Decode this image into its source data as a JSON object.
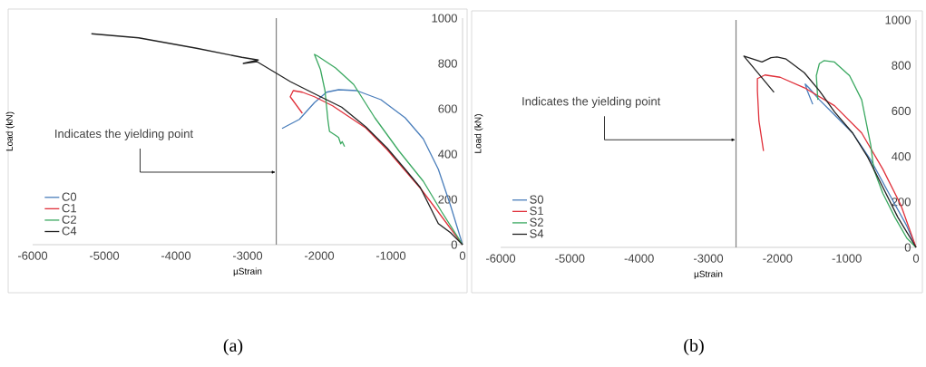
{
  "chart_data": [
    {
      "type": "line",
      "xlabel": "µStrain",
      "ylabel": "Load (kN)",
      "xlim": [
        -6000,
        0
      ],
      "ylim": [
        0,
        1000
      ],
      "xticks": [
        -6000,
        -5000,
        -4000,
        -3000,
        -2000,
        -1000,
        0
      ],
      "yticks": [
        0,
        200,
        400,
        600,
        800,
        1000
      ],
      "legend": "bottom left",
      "ref_lines": [
        {
          "axis": "x",
          "value": -2600,
          "color": "#808080"
        }
      ],
      "annotations": [
        {
          "text": "Indicates the yielding point",
          "x": -2600,
          "y": 320
        },
        "(a)"
      ],
      "series": [
        {
          "name": "C0",
          "color": "#4a7ebb",
          "x": [
            -2519,
            -2278,
            -2067,
            -1899,
            -1730,
            -1477,
            -1139,
            -801,
            -548,
            -338,
            -168,
            0
          ],
          "values": [
            513,
            553,
            627,
            673,
            684,
            680,
            640,
            560,
            467,
            333,
            173,
            0
          ]
        },
        {
          "name": "C1",
          "color": "#e0303a",
          "x": [
            -2236,
            -2405,
            -2363,
            -2236,
            -2067,
            -1814,
            -1350,
            -1054,
            -801,
            -591,
            -400,
            -200,
            0
          ],
          "values": [
            580,
            653,
            680,
            673,
            653,
            613,
            515,
            420,
            327,
            250,
            170,
            85,
            0
          ]
        },
        {
          "name": "C2",
          "color": "#3aa860",
          "x": [
            -1646,
            -1680,
            -1700,
            -1730,
            -1760,
            -1857,
            -1878,
            -1920,
            -1983,
            -2067,
            -2025,
            -1772,
            -1519,
            -1224,
            -886,
            -548,
            -295,
            0
          ],
          "values": [
            433,
            455,
            445,
            473,
            480,
            500,
            547,
            680,
            773,
            840,
            833,
            780,
            707,
            560,
            413,
            280,
            147,
            0
          ]
        },
        {
          "name": "C4",
          "color": "#222222",
          "x": [
            -5180,
            -4520,
            -3713,
            -3080,
            -2850,
            -3060,
            -2870,
            -2595,
            -2405,
            -2236,
            -1983,
            -1687,
            -1350,
            -1054,
            -801,
            -591,
            -464,
            -338,
            -168,
            0
          ],
          "values": [
            931,
            913,
            867,
            827,
            815,
            800,
            808,
            756,
            720,
            693,
            653,
            607,
            520,
            427,
            333,
            253,
            173,
            93,
            53,
            0
          ]
        }
      ]
    },
    {
      "type": "line",
      "xlabel": "µStrain",
      "ylabel": "Load (kN)",
      "xlim": [
        -6000,
        0
      ],
      "ylim": [
        0,
        1000
      ],
      "xticks": [
        -6000,
        -5000,
        -4000,
        -3000,
        -2000,
        -1000,
        0
      ],
      "yticks": [
        0,
        200,
        400,
        600,
        800,
        1000
      ],
      "legend": "bottom left",
      "ref_lines": [
        {
          "axis": "x",
          "value": -2600,
          "color": "#808080"
        }
      ],
      "annotations": [
        {
          "text": "Indicates the yielding point",
          "x": -2600,
          "y": 473
        },
        "(b)"
      ],
      "series": [
        {
          "name": "S0",
          "color": "#4a7ebb",
          "x": [
            -1492,
            -1571,
            -1601,
            -1549,
            -1396,
            -1178,
            -916,
            -654,
            -393,
            -131,
            0
          ],
          "values": [
            629,
            689,
            718,
            702,
            649,
            583,
            503,
            384,
            238,
            93,
            0
          ]
        },
        {
          "name": "S1",
          "color": "#e0303a",
          "x": [
            -2203,
            -2269,
            -2291,
            -2291,
            -2182,
            -1963,
            -1614,
            -1178,
            -785,
            -480,
            -218,
            0
          ],
          "values": [
            424,
            556,
            689,
            742,
            758,
            748,
            702,
            623,
            503,
            344,
            185,
            0
          ]
        },
        {
          "name": "S2",
          "color": "#3aa860",
          "x": [
            -1418,
            -1440,
            -1396,
            -1331,
            -1178,
            -960,
            -785,
            -654,
            -611,
            -480,
            -305,
            -131,
            0
          ],
          "values": [
            649,
            755,
            808,
            821,
            815,
            755,
            649,
            450,
            344,
            238,
            132,
            40,
            0
          ]
        },
        {
          "name": "S4",
          "color": "#222222",
          "x": [
            -2051,
            -2487,
            -2225,
            -2094,
            -2007,
            -1876,
            -1614,
            -1396,
            -1178,
            -916,
            -698,
            -480,
            -262,
            0
          ],
          "values": [
            682,
            841,
            815,
            834,
            837,
            828,
            768,
            689,
            596,
            503,
            397,
            265,
            132,
            0
          ]
        }
      ]
    }
  ]
}
